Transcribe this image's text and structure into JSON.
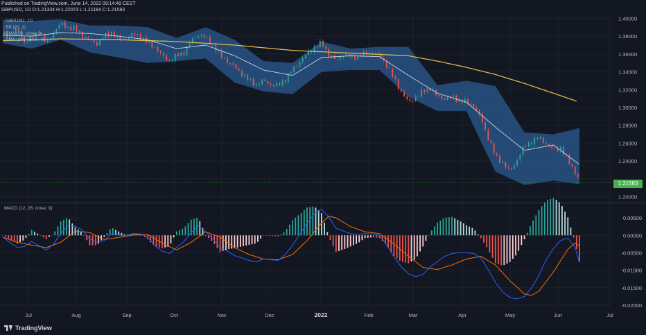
{
  "header": {
    "published": "Published on TradingView.com, June 14, 2022 09:14:49 CEST",
    "symbol": "GBPUSD, 1D",
    "ohlc": "O:1.21334 H:1.22073 L:1.21184 C:1.21583"
  },
  "legend": {
    "bb": "BB (20, 2)",
    "ema50": "EMA (50, close, 0)",
    "ema200": "EMA (200, close, 0)",
    "macd": "MACD (12, 26, close, 9)"
  },
  "last_price": "1.21583",
  "brand": "TradingView",
  "colors": {
    "background": "#131722",
    "up": "#26a69a",
    "down": "#ef5350",
    "band_fill": "#2a5d94",
    "ema50": "#c8d6e5",
    "ema200": "#e0b94a",
    "macd_line": "#2962ff",
    "signal_line": "#ff6d00",
    "hist_up_strong": "#26a69a",
    "hist_up_weak": "#b2dfdb",
    "hist_down_strong": "#ef5350",
    "hist_down_weak": "#ffcdd2"
  },
  "chart_data": [
    {
      "type": "candlestick",
      "title": "GBPUSD, 1D",
      "x_ticks": [
        "Jul",
        "Aug",
        "Sep",
        "Oct",
        "Nov",
        "Dec",
        "2022",
        "Feb",
        "Mar",
        "Apr",
        "May",
        "Jun",
        "Jul"
      ],
      "y_ticks": [
        "1.40000",
        "1.38000",
        "1.36000",
        "1.34000",
        "1.32000",
        "1.30000",
        "1.28000",
        "1.26000",
        "1.24000",
        "1.22000",
        "1.20000"
      ],
      "ylim": [
        1.195,
        1.405
      ],
      "close_path": [
        [
          0,
          1.382
        ],
        [
          5,
          1.38
        ],
        [
          10,
          1.388
        ],
        [
          15,
          1.374
        ],
        [
          20,
          1.378
        ],
        [
          25,
          1.385
        ],
        [
          30,
          1.372
        ],
        [
          35,
          1.384
        ],
        [
          40,
          1.394
        ],
        [
          45,
          1.39
        ],
        [
          50,
          1.388
        ],
        [
          55,
          1.38
        ],
        [
          60,
          1.375
        ],
        [
          65,
          1.372
        ],
        [
          70,
          1.38
        ],
        [
          75,
          1.384
        ],
        [
          80,
          1.376
        ],
        [
          85,
          1.378
        ],
        [
          90,
          1.382
        ],
        [
          95,
          1.38
        ],
        [
          100,
          1.372
        ],
        [
          105,
          1.368
        ],
        [
          110,
          1.358
        ],
        [
          115,
          1.352
        ],
        [
          120,
          1.358
        ],
        [
          125,
          1.362
        ],
        [
          130,
          1.375
        ],
        [
          135,
          1.382
        ],
        [
          140,
          1.378
        ],
        [
          145,
          1.37
        ],
        [
          150,
          1.358
        ],
        [
          155,
          1.352
        ],
        [
          160,
          1.345
        ],
        [
          165,
          1.338
        ],
        [
          170,
          1.33
        ],
        [
          175,
          1.326
        ],
        [
          180,
          1.33
        ],
        [
          185,
          1.326
        ],
        [
          190,
          1.324
        ],
        [
          195,
          1.332
        ],
        [
          200,
          1.342
        ],
        [
          205,
          1.352
        ],
        [
          210,
          1.36
        ],
        [
          215,
          1.368
        ],
        [
          220,
          1.372
        ],
        [
          225,
          1.36
        ],
        [
          230,
          1.352
        ],
        [
          235,
          1.36
        ],
        [
          240,
          1.356
        ],
        [
          245,
          1.358
        ],
        [
          250,
          1.36
        ],
        [
          255,
          1.362
        ],
        [
          260,
          1.358
        ],
        [
          265,
          1.348
        ],
        [
          270,
          1.332
        ],
        [
          275,
          1.318
        ],
        [
          280,
          1.305
        ],
        [
          285,
          1.312
        ],
        [
          290,
          1.318
        ],
        [
          295,
          1.322
        ],
        [
          300,
          1.312
        ],
        [
          305,
          1.31
        ],
        [
          310,
          1.312
        ],
        [
          315,
          1.308
        ],
        [
          320,
          1.306
        ],
        [
          325,
          1.302
        ],
        [
          330,
          1.288
        ],
        [
          335,
          1.266
        ],
        [
          340,
          1.245
        ],
        [
          345,
          1.238
        ],
        [
          350,
          1.228
        ],
        [
          355,
          1.242
        ],
        [
          360,
          1.256
        ],
        [
          365,
          1.262
        ],
        [
          370,
          1.266
        ],
        [
          375,
          1.26
        ],
        [
          380,
          1.252
        ],
        [
          385,
          1.255
        ],
        [
          390,
          1.24
        ],
        [
          395,
          1.228
        ],
        [
          398,
          1.216
        ]
      ],
      "ema50": [
        [
          0,
          1.381
        ],
        [
          20,
          1.38
        ],
        [
          40,
          1.384
        ],
        [
          60,
          1.383
        ],
        [
          80,
          1.38
        ],
        [
          100,
          1.376
        ],
        [
          120,
          1.366
        ],
        [
          140,
          1.37
        ],
        [
          160,
          1.358
        ],
        [
          180,
          1.342
        ],
        [
          200,
          1.336
        ],
        [
          220,
          1.356
        ],
        [
          240,
          1.358
        ],
        [
          260,
          1.357
        ],
        [
          280,
          1.336
        ],
        [
          300,
          1.316
        ],
        [
          320,
          1.306
        ],
        [
          340,
          1.278
        ],
        [
          360,
          1.252
        ],
        [
          380,
          1.258
        ],
        [
          398,
          1.236
        ]
      ],
      "ema200": [
        [
          0,
          1.375
        ],
        [
          40,
          1.377
        ],
        [
          80,
          1.376
        ],
        [
          120,
          1.374
        ],
        [
          160,
          1.37
        ],
        [
          200,
          1.364
        ],
        [
          240,
          1.361
        ],
        [
          280,
          1.358
        ],
        [
          300,
          1.352
        ],
        [
          320,
          1.345
        ],
        [
          340,
          1.337
        ],
        [
          360,
          1.327
        ],
        [
          380,
          1.316
        ],
        [
          398,
          1.306
        ]
      ],
      "bb_upper": [
        [
          0,
          1.398
        ],
        [
          20,
          1.397
        ],
        [
          40,
          1.399
        ],
        [
          60,
          1.392
        ],
        [
          80,
          1.392
        ],
        [
          100,
          1.39
        ],
        [
          120,
          1.378
        ],
        [
          140,
          1.39
        ],
        [
          160,
          1.376
        ],
        [
          180,
          1.352
        ],
        [
          200,
          1.35
        ],
        [
          220,
          1.374
        ],
        [
          240,
          1.366
        ],
        [
          260,
          1.368
        ],
        [
          280,
          1.368
        ],
        [
          300,
          1.325
        ],
        [
          320,
          1.33
        ],
        [
          340,
          1.324
        ],
        [
          360,
          1.272
        ],
        [
          380,
          1.27
        ],
        [
          398,
          1.277
        ]
      ],
      "bb_lower": [
        [
          0,
          1.372
        ],
        [
          20,
          1.366
        ],
        [
          40,
          1.376
        ],
        [
          60,
          1.362
        ],
        [
          80,
          1.356
        ],
        [
          100,
          1.35
        ],
        [
          120,
          1.352
        ],
        [
          140,
          1.355
        ],
        [
          160,
          1.328
        ],
        [
          180,
          1.318
        ],
        [
          200,
          1.315
        ],
        [
          220,
          1.34
        ],
        [
          240,
          1.342
        ],
        [
          260,
          1.342
        ],
        [
          280,
          1.312
        ],
        [
          300,
          1.296
        ],
        [
          320,
          1.296
        ],
        [
          340,
          1.228
        ],
        [
          360,
          1.213
        ],
        [
          380,
          1.218
        ],
        [
          398,
          1.214
        ]
      ]
    },
    {
      "type": "macd",
      "title": "MACD (12, 26, close, 9)",
      "y_ticks": [
        "0.00500",
        "0.00000",
        "-0.00500",
        "-0.01000",
        "-0.01500",
        "-0.02000"
      ],
      "ylim": [
        -0.021,
        0.0078
      ],
      "macd": [
        [
          0,
          -0.0005
        ],
        [
          5,
          -0.002
        ],
        [
          10,
          -0.0035
        ],
        [
          15,
          -0.0032
        ],
        [
          20,
          -0.0018
        ],
        [
          25,
          -0.003
        ],
        [
          30,
          -0.0042
        ],
        [
          35,
          -0.0025
        ],
        [
          40,
          0.0005
        ],
        [
          45,
          0.0028
        ],
        [
          50,
          0.0026
        ],
        [
          55,
          0.0015
        ],
        [
          60,
          -0.001
        ],
        [
          65,
          -0.002
        ],
        [
          70,
          -0.0015
        ],
        [
          75,
          0.0005
        ],
        [
          80,
          0.0001
        ],
        [
          85,
          -0.0002
        ],
        [
          90,
          0.0005
        ],
        [
          95,
          0.0004
        ],
        [
          100,
          -0.0005
        ],
        [
          105,
          -0.003
        ],
        [
          110,
          -0.0045
        ],
        [
          115,
          -0.0052
        ],
        [
          120,
          -0.0035
        ],
        [
          125,
          -0.0018
        ],
        [
          130,
          0.0008
        ],
        [
          135,
          0.0027
        ],
        [
          140,
          0.001
        ],
        [
          145,
          -0.001
        ],
        [
          150,
          -0.0035
        ],
        [
          155,
          -0.0045
        ],
        [
          160,
          -0.0058
        ],
        [
          165,
          -0.0065
        ],
        [
          170,
          -0.0072
        ],
        [
          175,
          -0.0076
        ],
        [
          180,
          -0.0068
        ],
        [
          185,
          -0.007
        ],
        [
          190,
          -0.0072
        ],
        [
          195,
          -0.0055
        ],
        [
          200,
          -0.0028
        ],
        [
          205,
          0.0003
        ],
        [
          210,
          0.0035
        ],
        [
          215,
          0.0062
        ],
        [
          220,
          0.0075
        ],
        [
          225,
          0.0052
        ],
        [
          230,
          0.002
        ],
        [
          235,
          0.0012
        ],
        [
          240,
          0.0005
        ],
        [
          245,
          0.0003
        ],
        [
          250,
          0.0005
        ],
        [
          255,
          0.0004
        ],
        [
          260,
          0.0
        ],
        [
          265,
          -0.0028
        ],
        [
          270,
          -0.0062
        ],
        [
          275,
          -0.009
        ],
        [
          280,
          -0.011
        ],
        [
          285,
          -0.0118
        ],
        [
          290,
          -0.0112
        ],
        [
          295,
          -0.009
        ],
        [
          300,
          -0.0075
        ],
        [
          305,
          -0.006
        ],
        [
          310,
          -0.0052
        ],
        [
          315,
          -0.005
        ],
        [
          320,
          -0.005
        ],
        [
          325,
          -0.0052
        ],
        [
          330,
          -0.0065
        ],
        [
          335,
          -0.0098
        ],
        [
          340,
          -0.0135
        ],
        [
          345,
          -0.0162
        ],
        [
          350,
          -0.0178
        ],
        [
          355,
          -0.0182
        ],
        [
          360,
          -0.0175
        ],
        [
          365,
          -0.015
        ],
        [
          370,
          -0.0115
        ],
        [
          375,
          -0.007
        ],
        [
          380,
          -0.0038
        ],
        [
          385,
          -0.0015
        ],
        [
          390,
          -0.0008
        ],
        [
          395,
          -0.0035
        ],
        [
          398,
          -0.0078
        ]
      ],
      "signal": [
        [
          0,
          -0.0005
        ],
        [
          10,
          -0.002
        ],
        [
          20,
          -0.0028
        ],
        [
          30,
          -0.0035
        ],
        [
          40,
          -0.002
        ],
        [
          50,
          0.0012
        ],
        [
          60,
          0.0008
        ],
        [
          70,
          -0.0012
        ],
        [
          80,
          -0.0006
        ],
        [
          90,
          0.0001
        ],
        [
          100,
          0.0002
        ],
        [
          110,
          -0.0022
        ],
        [
          120,
          -0.0042
        ],
        [
          130,
          -0.002
        ],
        [
          140,
          0.001
        ],
        [
          150,
          -0.0005
        ],
        [
          160,
          -0.0035
        ],
        [
          170,
          -0.0055
        ],
        [
          180,
          -0.0068
        ],
        [
          190,
          -0.007
        ],
        [
          200,
          -0.0055
        ],
        [
          210,
          -0.0015
        ],
        [
          220,
          0.0035
        ],
        [
          225,
          0.0055
        ],
        [
          230,
          0.005
        ],
        [
          240,
          0.0025
        ],
        [
          250,
          0.001
        ],
        [
          260,
          0.0005
        ],
        [
          270,
          -0.0025
        ],
        [
          280,
          -0.006
        ],
        [
          290,
          -0.0092
        ],
        [
          300,
          -0.0098
        ],
        [
          310,
          -0.0085
        ],
        [
          320,
          -0.0068
        ],
        [
          330,
          -0.006
        ],
        [
          340,
          -0.0085
        ],
        [
          350,
          -0.013
        ],
        [
          360,
          -0.0168
        ],
        [
          365,
          -0.0172
        ],
        [
          370,
          -0.016
        ],
        [
          380,
          -0.0105
        ],
        [
          390,
          -0.004
        ],
        [
          395,
          -0.0022
        ],
        [
          398,
          -0.003
        ]
      ]
    }
  ]
}
